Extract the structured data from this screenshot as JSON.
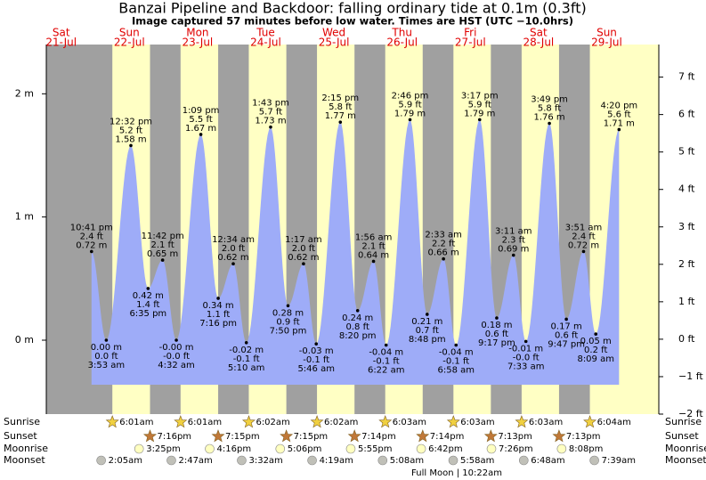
{
  "title": "Banzai Pipeline and Backdoor: falling  ordinary tide at 0.1m (0.3ft)",
  "subtitle": "Image captured 57 minutes before low water. Times are HST (UTC −10.0hrs)",
  "ylim": [
    -0.6,
    2.4
  ],
  "yticks": [
    {
      "value": 0,
      "label": "0 m"
    },
    {
      "value": 1,
      "label": "1 m"
    },
    {
      "value": 2,
      "label": "2 m"
    }
  ],
  "y2lim": [
    -2,
    7.87
  ],
  "y2ticks": [
    {
      "value": -2,
      "label": "−2 ft"
    },
    {
      "value": -1,
      "label": "−1 ft"
    },
    {
      "value": 0,
      "label": "0 ft"
    },
    {
      "value": 1,
      "label": "1 ft"
    },
    {
      "value": 2,
      "label": "2 ft"
    },
    {
      "value": 3,
      "label": "3 ft"
    },
    {
      "value": 4,
      "label": "4 ft"
    },
    {
      "value": 5,
      "label": "5 ft"
    },
    {
      "value": 6,
      "label": "6 ft"
    },
    {
      "value": 7,
      "label": "7 ft"
    }
  ],
  "row_labels": [
    "Sunrise",
    "Sunset",
    "Moonrise",
    "Moonset"
  ],
  "moon_phase": "Full Moon | 10:22am",
  "days": [
    {
      "weekday": "Sat",
      "date": "21-Jul",
      "tides": [
        {
          "time": "10:41 pm",
          "height_m": 0.72,
          "m_label": "0.72 m",
          "ft_label": "2.4 ft"
        }
      ]
    },
    {
      "weekday": "Sun",
      "date": "22-Jul",
      "sunrise": "6:01am",
      "sunset": "7:16pm",
      "moonrise": "3:25pm",
      "moonset": "2:05am",
      "tides": [
        {
          "time": "3:53 am",
          "height_m": 0.0,
          "m_label": "0.00 m",
          "ft_label": "0.0 ft"
        },
        {
          "time": "12:32 pm",
          "height_m": 1.58,
          "m_label": "1.58 m",
          "ft_label": "5.2 ft"
        },
        {
          "time": "6:35 pm",
          "height_m": 0.42,
          "m_label": "0.42 m",
          "ft_label": "1.4 ft"
        },
        {
          "time": "11:42 pm",
          "height_m": 0.65,
          "m_label": "0.65 m",
          "ft_label": "2.1 ft"
        }
      ]
    },
    {
      "weekday": "Mon",
      "date": "23-Jul",
      "sunrise": "6:01am",
      "sunset": "7:15pm",
      "moonrise": "4:16pm",
      "moonset": "2:47am",
      "tides": [
        {
          "time": "4:32 am",
          "height_m": -0.0,
          "m_label": "-0.00 m",
          "ft_label": "-0.0 ft"
        },
        {
          "time": "1:09 pm",
          "height_m": 1.67,
          "m_label": "1.67 m",
          "ft_label": "5.5 ft"
        },
        {
          "time": "7:16 pm",
          "height_m": 0.34,
          "m_label": "0.34 m",
          "ft_label": "1.1 ft"
        }
      ]
    },
    {
      "weekday": "Tue",
      "date": "24-Jul",
      "sunrise": "6:02am",
      "sunset": "7:15pm",
      "moonrise": "5:06pm",
      "moonset": "3:32am",
      "tides": [
        {
          "time": "12:34 am",
          "height_m": 0.62,
          "m_label": "0.62 m",
          "ft_label": "2.0 ft"
        },
        {
          "time": "5:10 am",
          "height_m": -0.02,
          "m_label": "-0.02 m",
          "ft_label": "-0.1 ft"
        },
        {
          "time": "1:43 pm",
          "height_m": 1.73,
          "m_label": "1.73 m",
          "ft_label": "5.7 ft"
        },
        {
          "time": "7:50 pm",
          "height_m": 0.28,
          "m_label": "0.28 m",
          "ft_label": "0.9 ft"
        }
      ]
    },
    {
      "weekday": "Wed",
      "date": "25-Jul",
      "sunrise": "6:02am",
      "sunset": "7:14pm",
      "moonrise": "5:55pm",
      "moonset": "4:19am",
      "tides": [
        {
          "time": "1:17 am",
          "height_m": 0.62,
          "m_label": "0.62 m",
          "ft_label": "2.0 ft"
        },
        {
          "time": "5:46 am",
          "height_m": -0.03,
          "m_label": "-0.03 m",
          "ft_label": "-0.1 ft"
        },
        {
          "time": "2:15 pm",
          "height_m": 1.77,
          "m_label": "1.77 m",
          "ft_label": "5.8 ft"
        },
        {
          "time": "8:20 pm",
          "height_m": 0.24,
          "m_label": "0.24 m",
          "ft_label": "0.8 ft"
        }
      ]
    },
    {
      "weekday": "Thu",
      "date": "26-Jul",
      "sunrise": "6:03am",
      "sunset": "7:14pm",
      "moonrise": "6:42pm",
      "moonset": "5:08am",
      "tides": [
        {
          "time": "1:56 am",
          "height_m": 0.64,
          "m_label": "0.64 m",
          "ft_label": "2.1 ft"
        },
        {
          "time": "6:22 am",
          "height_m": -0.04,
          "m_label": "-0.04 m",
          "ft_label": "-0.1 ft"
        },
        {
          "time": "2:46 pm",
          "height_m": 1.79,
          "m_label": "1.79 m",
          "ft_label": "5.9 ft"
        },
        {
          "time": "8:48 pm",
          "height_m": 0.21,
          "m_label": "0.21 m",
          "ft_label": "0.7 ft"
        }
      ]
    },
    {
      "weekday": "Fri",
      "date": "27-Jul",
      "sunrise": "6:03am",
      "sunset": "7:13pm",
      "moonrise": "7:26pm",
      "moonset": "5:58am",
      "tides": [
        {
          "time": "2:33 am",
          "height_m": 0.66,
          "m_label": "0.66 m",
          "ft_label": "2.2 ft"
        },
        {
          "time": "6:58 am",
          "height_m": -0.04,
          "m_label": "-0.04 m",
          "ft_label": "-0.1 ft"
        },
        {
          "time": "3:17 pm",
          "height_m": 1.79,
          "m_label": "1.79 m",
          "ft_label": "5.9 ft"
        },
        {
          "time": "9:17 pm",
          "height_m": 0.18,
          "m_label": "0.18 m",
          "ft_label": "0.6 ft"
        }
      ]
    },
    {
      "weekday": "Sat",
      "date": "28-Jul",
      "sunrise": "6:03am",
      "sunset": "7:13pm",
      "moonrise": "8:08pm",
      "moonset": "6:48am",
      "tides": [
        {
          "time": "3:11 am",
          "height_m": 0.69,
          "m_label": "0.69 m",
          "ft_label": "2.3 ft"
        },
        {
          "time": "7:33 am",
          "height_m": -0.01,
          "m_label": "-0.01 m",
          "ft_label": "-0.0 ft"
        },
        {
          "time": "3:49 pm",
          "height_m": 1.76,
          "m_label": "1.76 m",
          "ft_label": "5.8 ft"
        },
        {
          "time": "9:47 pm",
          "height_m": 0.17,
          "m_label": "0.17 m",
          "ft_label": "0.6 ft"
        }
      ]
    },
    {
      "weekday": "Sun",
      "date": "29-Jul",
      "sunrise": "6:04am",
      "moonset": "7:39am",
      "tides": [
        {
          "time": "3:51 am",
          "height_m": 0.72,
          "m_label": "0.72 m",
          "ft_label": "2.4 ft"
        },
        {
          "time": "8:09 am",
          "height_m": 0.05,
          "m_label": "0.05 m",
          "ft_label": "0.2 ft"
        },
        {
          "time": "4:20 pm",
          "height_m": 1.71,
          "m_label": "1.71 m",
          "ft_label": "5.6 ft"
        }
      ]
    }
  ]
}
